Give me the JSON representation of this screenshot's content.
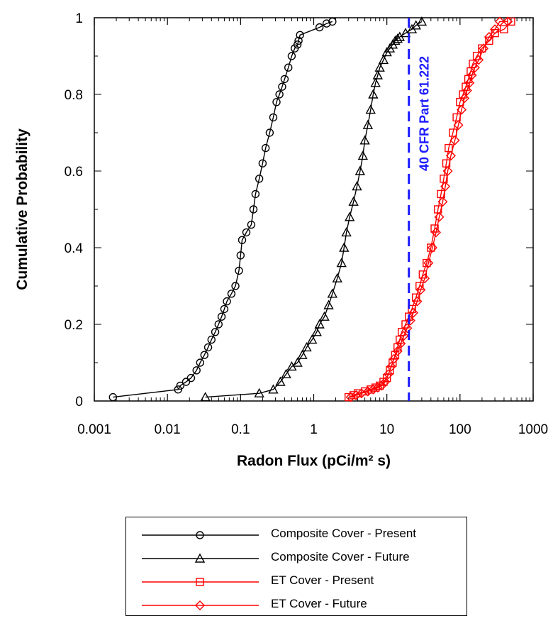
{
  "chart_data": {
    "type": "line",
    "xlabel": "Radon Flux (pCi/m² s)",
    "ylabel": "Cumulative Probability",
    "xscale": "log",
    "xlim": [
      0.001,
      1000
    ],
    "ylim": [
      0,
      1
    ],
    "x_tick_labels": [
      "0.001",
      "0.01",
      "0.1",
      "1",
      "10",
      "100",
      "1000"
    ],
    "x_tick_values": [
      0.001,
      0.01,
      0.1,
      1,
      10,
      100,
      1000
    ],
    "y_tick_labels": [
      "0",
      "0.2",
      "0.4",
      "0.6",
      "0.8",
      "1"
    ],
    "y_tick_values": [
      0,
      0.2,
      0.4,
      0.6,
      0.8,
      1
    ],
    "grid": false,
    "legend_placement": "below",
    "reference_line": {
      "x": 20,
      "label": "40 CFR Part 61.222",
      "color": "#1a1aff",
      "style": "dashed"
    },
    "series": [
      {
        "name": "Composite Cover - Present",
        "color": "#000000",
        "marker": "circle",
        "x": [
          0.0018,
          0.014,
          0.015,
          0.018,
          0.021,
          0.025,
          0.028,
          0.032,
          0.036,
          0.04,
          0.045,
          0.05,
          0.055,
          0.06,
          0.065,
          0.075,
          0.085,
          0.095,
          0.1,
          0.105,
          0.12,
          0.14,
          0.15,
          0.16,
          0.18,
          0.2,
          0.22,
          0.25,
          0.28,
          0.31,
          0.34,
          0.37,
          0.4,
          0.45,
          0.5,
          0.55,
          0.6,
          0.62,
          0.65,
          1.2,
          1.5,
          1.8
        ],
        "y": [
          0.01,
          0.03,
          0.04,
          0.05,
          0.06,
          0.08,
          0.1,
          0.12,
          0.14,
          0.16,
          0.18,
          0.2,
          0.22,
          0.24,
          0.26,
          0.28,
          0.3,
          0.34,
          0.38,
          0.42,
          0.44,
          0.46,
          0.5,
          0.54,
          0.58,
          0.62,
          0.66,
          0.7,
          0.74,
          0.78,
          0.8,
          0.82,
          0.84,
          0.87,
          0.9,
          0.92,
          0.93,
          0.94,
          0.955,
          0.975,
          0.985,
          0.99
        ]
      },
      {
        "name": "Composite Cover - Future",
        "color": "#000000",
        "marker": "triangle",
        "x": [
          0.033,
          0.18,
          0.28,
          0.35,
          0.42,
          0.5,
          0.6,
          0.7,
          0.8,
          0.95,
          1.1,
          1.2,
          1.4,
          1.6,
          1.8,
          2.1,
          2.4,
          2.6,
          2.8,
          3.1,
          3.5,
          3.9,
          4.3,
          4.7,
          5.0,
          5.5,
          6.0,
          6.5,
          7.0,
          7.5,
          8.0,
          9.0,
          10,
          11,
          12,
          13,
          14,
          15,
          18,
          22,
          25,
          30
        ],
        "y": [
          0.01,
          0.02,
          0.03,
          0.05,
          0.07,
          0.09,
          0.1,
          0.12,
          0.14,
          0.16,
          0.18,
          0.2,
          0.22,
          0.25,
          0.28,
          0.32,
          0.36,
          0.4,
          0.44,
          0.48,
          0.52,
          0.56,
          0.6,
          0.64,
          0.68,
          0.72,
          0.76,
          0.8,
          0.83,
          0.85,
          0.87,
          0.89,
          0.91,
          0.92,
          0.93,
          0.94,
          0.945,
          0.95,
          0.96,
          0.97,
          0.98,
          0.99
        ]
      },
      {
        "name": "ET Cover - Present",
        "color": "#ff0000",
        "marker": "square",
        "x": [
          3.0,
          3.5,
          4.0,
          5.0,
          6.0,
          7.0,
          8.0,
          9.0,
          10,
          11,
          12,
          13,
          14,
          15,
          16,
          18,
          20,
          22,
          25,
          28,
          31,
          35,
          40,
          45,
          50,
          55,
          60,
          65,
          70,
          80,
          90,
          100,
          110,
          120,
          130,
          140,
          150,
          170,
          200,
          250,
          300,
          400,
          500
        ],
        "y": [
          0.01,
          0.015,
          0.02,
          0.025,
          0.03,
          0.035,
          0.04,
          0.05,
          0.06,
          0.08,
          0.1,
          0.12,
          0.14,
          0.16,
          0.18,
          0.2,
          0.22,
          0.24,
          0.27,
          0.3,
          0.33,
          0.36,
          0.4,
          0.45,
          0.5,
          0.54,
          0.58,
          0.62,
          0.66,
          0.7,
          0.74,
          0.78,
          0.8,
          0.82,
          0.84,
          0.86,
          0.88,
          0.9,
          0.92,
          0.94,
          0.96,
          0.97,
          0.99
        ]
      },
      {
        "name": "ET Cover - Future",
        "color": "#ff0000",
        "marker": "diamond",
        "x": [
          3.2,
          3.8,
          4.5,
          5.5,
          6.5,
          7.5,
          8.5,
          9.5,
          10.5,
          11.5,
          12.5,
          14,
          15.5,
          17,
          19,
          21,
          23,
          26,
          29,
          33,
          37,
          42,
          47,
          52,
          58,
          63,
          68,
          75,
          85,
          95,
          105,
          115,
          125,
          135,
          145,
          160,
          180,
          210,
          250,
          300,
          350,
          450
        ],
        "y": [
          0.01,
          0.015,
          0.02,
          0.025,
          0.03,
          0.035,
          0.04,
          0.05,
          0.07,
          0.09,
          0.11,
          0.13,
          0.15,
          0.17,
          0.19,
          0.21,
          0.23,
          0.26,
          0.29,
          0.32,
          0.36,
          0.4,
          0.44,
          0.48,
          0.52,
          0.56,
          0.6,
          0.64,
          0.68,
          0.72,
          0.76,
          0.79,
          0.81,
          0.83,
          0.85,
          0.87,
          0.89,
          0.92,
          0.95,
          0.97,
          0.99,
          0.99
        ]
      }
    ]
  }
}
